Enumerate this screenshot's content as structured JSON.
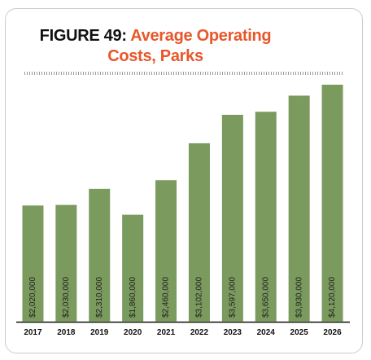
{
  "chart_data": {
    "type": "bar",
    "title": "FIGURE 49:",
    "subtitle": "Average Operating Costs, Parks",
    "categories": [
      "2017",
      "2018",
      "2019",
      "2020",
      "2021",
      "2022",
      "2023",
      "2024",
      "2025",
      "2026"
    ],
    "values": [
      2020000,
      2030000,
      2310000,
      1860000,
      2460000,
      3102000,
      3597000,
      3650000,
      3930000,
      4120000
    ],
    "value_labels": [
      "$2,020,000",
      "$2,030,000",
      "$2,310,000",
      "$1,860,000",
      "$2,460,000",
      "$3,102,000",
      "$3,597,000",
      "$3,650,000",
      "$3,930,000",
      "$4,120,000"
    ],
    "color": "#7b9a5e"
  }
}
